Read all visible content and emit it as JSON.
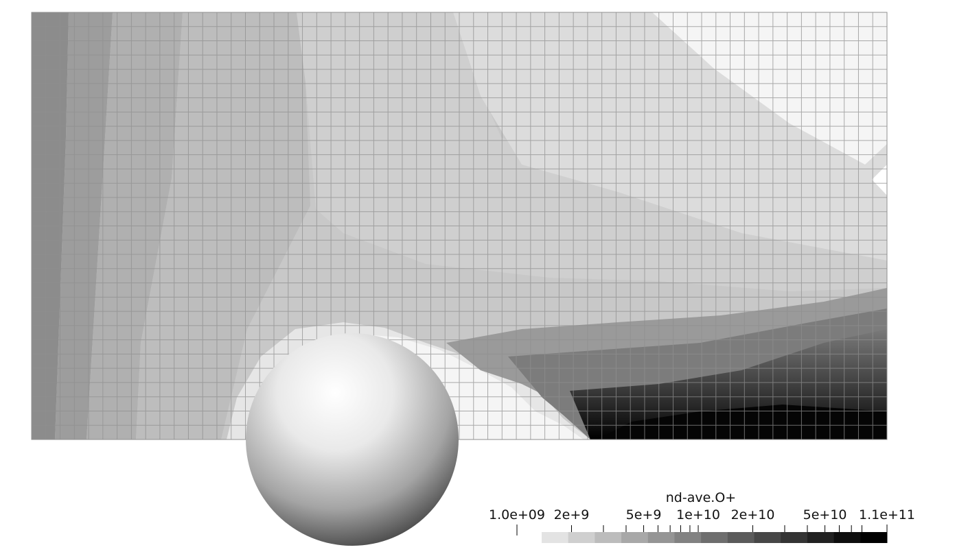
{
  "colorbar": {
    "title": "nd-ave.O+",
    "tick_labels": [
      "1.0e+09",
      "2e+9",
      "5e+9",
      "1e+10",
      "2e+10",
      "5e+10",
      "1.1e+11"
    ],
    "range": [
      1000000000.0,
      110000000000.0
    ],
    "scale": "log",
    "colors": [
      "#e3e3e3",
      "#cfcfcf",
      "#bcbcbc",
      "#a8a8a8",
      "#959595",
      "#828282",
      "#6e6e6e",
      "#5b5b5b",
      "#474747",
      "#343434",
      "#212121",
      "#0e0e0e",
      "#000000"
    ]
  },
  "field_colors": {
    "light": "#f5f5f5",
    "mid_light": "#dcdcdc",
    "mid": "#c8c8c8",
    "mid_dark": "#b4b4b4",
    "dark": "#9c9c9c",
    "darker": "#8a8a8a",
    "wake_dark": "#3c3c3c",
    "wake_black": "#050505",
    "grid_line": "#8f8f8f"
  },
  "sphere": {
    "highlight": "#ffffff",
    "shadow": "#3a3a3a"
  }
}
